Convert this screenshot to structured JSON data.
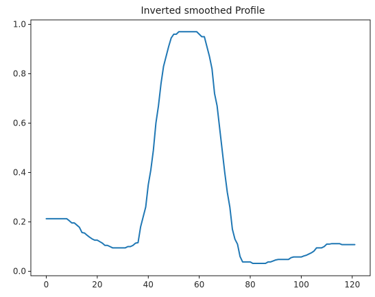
{
  "colors": {
    "series": "#1f77b4",
    "axis": "#000000",
    "text": "#262626"
  },
  "chart_data": {
    "type": "line",
    "title": "Inverted smoothed Profile",
    "xlabel": "",
    "ylabel": "",
    "xlim": [
      -6.05,
      127.05
    ],
    "ylim": [
      -0.018,
      1.018
    ],
    "grid": false,
    "legend": "none",
    "xticks": [
      0,
      20,
      40,
      60,
      80,
      100,
      120
    ],
    "yticks": [
      0.0,
      0.2,
      0.4,
      0.6,
      0.8,
      1.0
    ],
    "xtick_labels": [
      "0",
      "20",
      "40",
      "60",
      "80",
      "100",
      "120"
    ],
    "ytick_labels": [
      "0.0",
      "0.2",
      "0.4",
      "0.6",
      "0.8",
      "1.0"
    ],
    "series": [
      {
        "x": [
          0,
          1,
          2,
          3,
          4,
          5,
          6,
          7,
          8,
          9,
          10,
          11,
          12,
          13,
          14,
          15,
          16,
          17,
          18,
          19,
          20,
          21,
          22,
          23,
          24,
          25,
          26,
          27,
          28,
          29,
          30,
          31,
          32,
          33,
          34,
          35,
          36,
          37,
          38,
          39,
          40,
          41,
          42,
          43,
          44,
          45,
          46,
          47,
          48,
          49,
          50,
          51,
          52,
          53,
          54,
          55,
          56,
          57,
          58,
          59,
          60,
          61,
          62,
          63,
          64,
          65,
          66,
          67,
          68,
          69,
          70,
          71,
          72,
          73,
          74,
          75,
          76,
          77,
          78,
          79,
          80,
          81,
          82,
          83,
          84,
          85,
          86,
          87,
          88,
          89,
          90,
          91,
          92,
          93,
          94,
          95,
          96,
          97,
          98,
          99,
          100,
          101,
          102,
          103,
          104,
          105,
          106,
          107,
          108,
          109,
          110,
          111,
          112,
          113,
          114,
          115,
          116,
          117,
          118,
          119,
          120,
          121
        ],
        "y": [
          0.213,
          0.213,
          0.213,
          0.213,
          0.213,
          0.213,
          0.213,
          0.213,
          0.213,
          0.205,
          0.196,
          0.196,
          0.187,
          0.178,
          0.157,
          0.155,
          0.146,
          0.138,
          0.131,
          0.126,
          0.126,
          0.12,
          0.114,
          0.105,
          0.105,
          0.1,
          0.095,
          0.095,
          0.095,
          0.095,
          0.095,
          0.095,
          0.1,
          0.1,
          0.105,
          0.114,
          0.116,
          0.18,
          0.22,
          0.26,
          0.35,
          0.41,
          0.49,
          0.6,
          0.67,
          0.76,
          0.83,
          0.87,
          0.91,
          0.945,
          0.96,
          0.96,
          0.97,
          0.97,
          0.97,
          0.97,
          0.97,
          0.97,
          0.97,
          0.97,
          0.96,
          0.95,
          0.95,
          0.91,
          0.87,
          0.82,
          0.72,
          0.67,
          0.58,
          0.49,
          0.4,
          0.32,
          0.26,
          0.17,
          0.13,
          0.11,
          0.06,
          0.038,
          0.038,
          0.038,
          0.038,
          0.032,
          0.032,
          0.032,
          0.032,
          0.032,
          0.032,
          0.038,
          0.038,
          0.042,
          0.046,
          0.048,
          0.048,
          0.048,
          0.048,
          0.048,
          0.055,
          0.058,
          0.058,
          0.058,
          0.058,
          0.062,
          0.065,
          0.07,
          0.075,
          0.082,
          0.095,
          0.095,
          0.095,
          0.1,
          0.11,
          0.11,
          0.112,
          0.112,
          0.112,
          0.112,
          0.108,
          0.108,
          0.108,
          0.108,
          0.108,
          0.108
        ]
      }
    ]
  }
}
